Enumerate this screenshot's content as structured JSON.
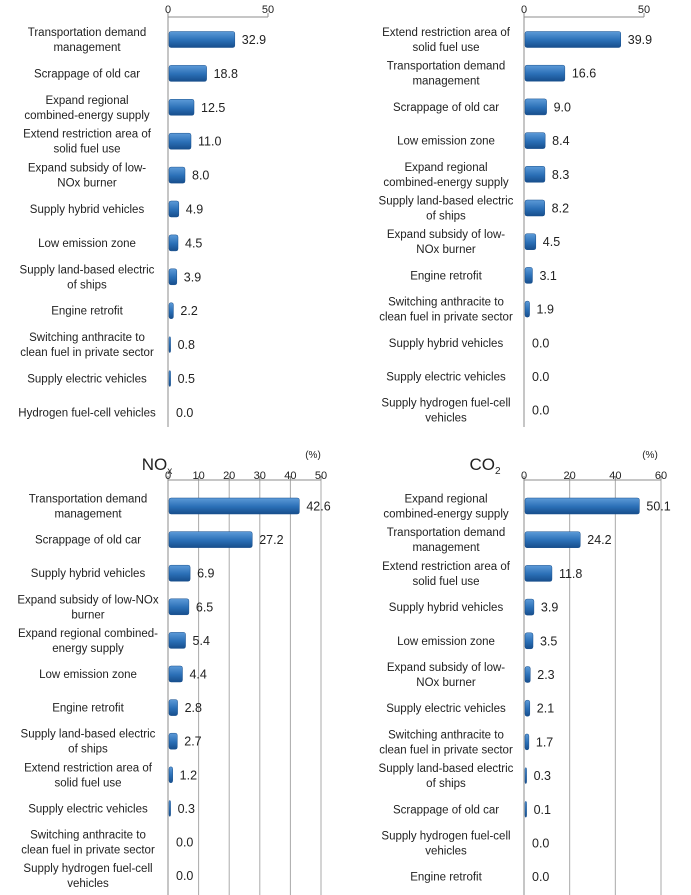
{
  "chart_data": [
    {
      "id": "top-left",
      "type": "bar",
      "orientation": "horizontal",
      "title": "",
      "unit_label": "",
      "xlim": [
        0,
        50
      ],
      "ticks": [
        "0",
        "50"
      ],
      "categories": [
        "Transportation demand management",
        "Scrappage of old car",
        "Expand regional combined-energy supply",
        "Extend restriction area of solid fuel use",
        "Expand subsidy of low-NOx burner",
        "Supply hybrid vehicles",
        "Low emission zone",
        "Supply land-based electric of ships",
        "Engine retrofit",
        "Switching anthracite to clean fuel in private sector",
        "Supply electric vehicles",
        "Hydrogen fuel-cell vehicles"
      ],
      "label_lines": [
        [
          "Transportation demand",
          "management"
        ],
        [
          "Scrappage of old car"
        ],
        [
          "Expand regional",
          "combined-energy supply"
        ],
        [
          "Extend restriction area of",
          "solid fuel use"
        ],
        [
          "Expand subsidy of low-",
          "NOx burner"
        ],
        [
          "Supply hybrid vehicles"
        ],
        [
          "Low emission zone"
        ],
        [
          "Supply land-based electric",
          "of ships"
        ],
        [
          "Engine retrofit"
        ],
        [
          "Switching anthracite to",
          "clean fuel in private sector"
        ],
        [
          "Supply electric vehicles"
        ],
        [
          "Hydrogen fuel-cell vehicles"
        ]
      ],
      "values": [
        32.9,
        18.8,
        12.5,
        11.0,
        8.0,
        4.9,
        4.5,
        3.9,
        2.2,
        0.8,
        0.5,
        0.0
      ],
      "value_labels": [
        "32.9",
        "18.8",
        "12.5",
        "11.0",
        "8.0",
        "4.9",
        "4.5",
        "3.9",
        "2.2",
        "0.8",
        "0.5",
        "0.0"
      ]
    },
    {
      "id": "top-right",
      "type": "bar",
      "orientation": "horizontal",
      "title": "",
      "unit_label": "",
      "xlim": [
        0,
        50
      ],
      "ticks": [
        "0",
        "50"
      ],
      "categories": [
        "Extend restriction area of solid fuel use",
        "Transportation demand management",
        "Scrappage of old car",
        "Low emission zone",
        "Expand regional combined-energy supply",
        "Supply land-based electric of ships",
        "Expand subsidy of low-NOx burner",
        "Engine retrofit",
        "Switching anthracite to clean fuel in private sector",
        "Supply hybrid vehicles",
        "Supply electric vehicles",
        "Supply hydrogen fuel-cell vehicles"
      ],
      "label_lines": [
        [
          "Extend restriction area of",
          "solid fuel use"
        ],
        [
          "Transportation demand",
          "management"
        ],
        [
          "Scrappage of old car"
        ],
        [
          "Low emission zone"
        ],
        [
          "Expand regional",
          "combined-energy supply"
        ],
        [
          "Supply land-based electric",
          "of ships"
        ],
        [
          "Expand subsidy of low-",
          "NOx burner"
        ],
        [
          "Engine retrofit"
        ],
        [
          "Switching anthracite to",
          "clean fuel in private sector"
        ],
        [
          "Supply hybrid vehicles"
        ],
        [
          "Supply electric vehicles"
        ],
        [
          "Supply hydrogen fuel-cell",
          "vehicles"
        ]
      ],
      "values": [
        39.9,
        16.6,
        9.0,
        8.4,
        8.3,
        8.2,
        4.5,
        3.1,
        1.9,
        0.0,
        0.0,
        0.0
      ],
      "value_labels": [
        "39.9",
        "16.6",
        "9.0",
        "8.4",
        "8.3",
        "8.2",
        "4.5",
        "3.1",
        "1.9",
        "0.0",
        "0.0",
        "0.0"
      ]
    },
    {
      "id": "nox",
      "type": "bar",
      "orientation": "horizontal",
      "title": "NOx",
      "title_main": "NO",
      "title_sub": "x",
      "unit_label": "(%)",
      "xlim": [
        0,
        50
      ],
      "ticks": [
        "0",
        "10",
        "20",
        "30",
        "40",
        "50"
      ],
      "categories": [
        "Transportation demand management",
        "Scrappage of old car",
        "Supply hybrid vehicles",
        "Expand subsidy of low-NOx burner",
        "Expand regional combined-energy supply",
        "Low emission zone",
        "Engine retrofit",
        "Supply land-based electric of ships",
        "Extend restriction area of solid fuel use",
        "Supply electric vehicles",
        "Switching anthracite to clean fuel in private sector",
        "Supply hydrogen fuel-cell vehicles"
      ],
      "label_lines": [
        [
          "Transportation demand",
          "management"
        ],
        [
          "Scrappage of old car"
        ],
        [
          "Supply hybrid vehicles"
        ],
        [
          "Expand subsidy of low-NOx",
          "burner"
        ],
        [
          "Expand regional combined-",
          "energy supply"
        ],
        [
          "Low emission zone"
        ],
        [
          "Engine retrofit"
        ],
        [
          "Supply land-based electric",
          "of ships"
        ],
        [
          "Extend restriction area of",
          "solid fuel use"
        ],
        [
          "Supply electric vehicles"
        ],
        [
          "Switching anthracite to",
          "clean fuel in private sector"
        ],
        [
          "Supply hydrogen fuel-cell",
          "vehicles"
        ]
      ],
      "values": [
        42.6,
        27.2,
        6.9,
        6.5,
        5.4,
        4.4,
        2.8,
        2.7,
        1.2,
        0.3,
        0.0,
        0.0
      ],
      "value_labels": [
        "42.6",
        "27.2",
        "6.9",
        "6.5",
        "5.4",
        "4.4",
        "2.8",
        "2.7",
        "1.2",
        "0.3",
        "0.0",
        "0.0"
      ]
    },
    {
      "id": "co2",
      "type": "bar",
      "orientation": "horizontal",
      "title": "CO2",
      "title_main": "CO",
      "title_sub": "2",
      "unit_label": "(%)",
      "xlim": [
        0,
        60
      ],
      "ticks": [
        "0",
        "20",
        "40",
        "60"
      ],
      "categories": [
        "Expand regional combined-energy supply",
        "Transportation demand management",
        "Extend restriction area of solid fuel use",
        "Supply hybrid vehicles",
        "Low emission zone",
        "Expand subsidy of low-NOx burner",
        "Supply electric vehicles",
        "Switching anthracite to clean fuel in private sector",
        "Supply land-based electric of ships",
        "Scrappage of old car",
        "Supply hydrogen fuel-cell vehicles",
        "Engine retrofit"
      ],
      "label_lines": [
        [
          "Expand regional",
          "combined-energy supply"
        ],
        [
          "Transportation demand",
          "management"
        ],
        [
          "Extend restriction area of",
          "solid fuel use"
        ],
        [
          "Supply hybrid vehicles"
        ],
        [
          "Low emission zone"
        ],
        [
          "Expand subsidy of low-",
          "NOx burner"
        ],
        [
          "Supply electric vehicles"
        ],
        [
          "Switching anthracite to",
          "clean fuel in private sector"
        ],
        [
          "Supply land-based electric",
          "of ships"
        ],
        [
          "Scrappage of old car"
        ],
        [
          "Supply hydrogen fuel-cell",
          "vehicles"
        ],
        [
          "Engine retrofit"
        ]
      ],
      "values": [
        50.1,
        24.2,
        11.8,
        3.9,
        3.5,
        2.3,
        2.1,
        1.7,
        0.3,
        0.1,
        0.0,
        0.0
      ],
      "value_labels": [
        "50.1",
        "24.2",
        "11.8",
        "3.9",
        "3.5",
        "2.3",
        "2.1",
        "1.7",
        "0.3",
        "0.1",
        "0.0",
        "0.0"
      ]
    }
  ],
  "colors": {
    "bar": "#2a6fb6",
    "bar_dark": "#174e8c",
    "bar_light": "#5d9bd8",
    "axis": "#8c8c8c",
    "grid": "#aaaaaa",
    "text": "#222222"
  }
}
